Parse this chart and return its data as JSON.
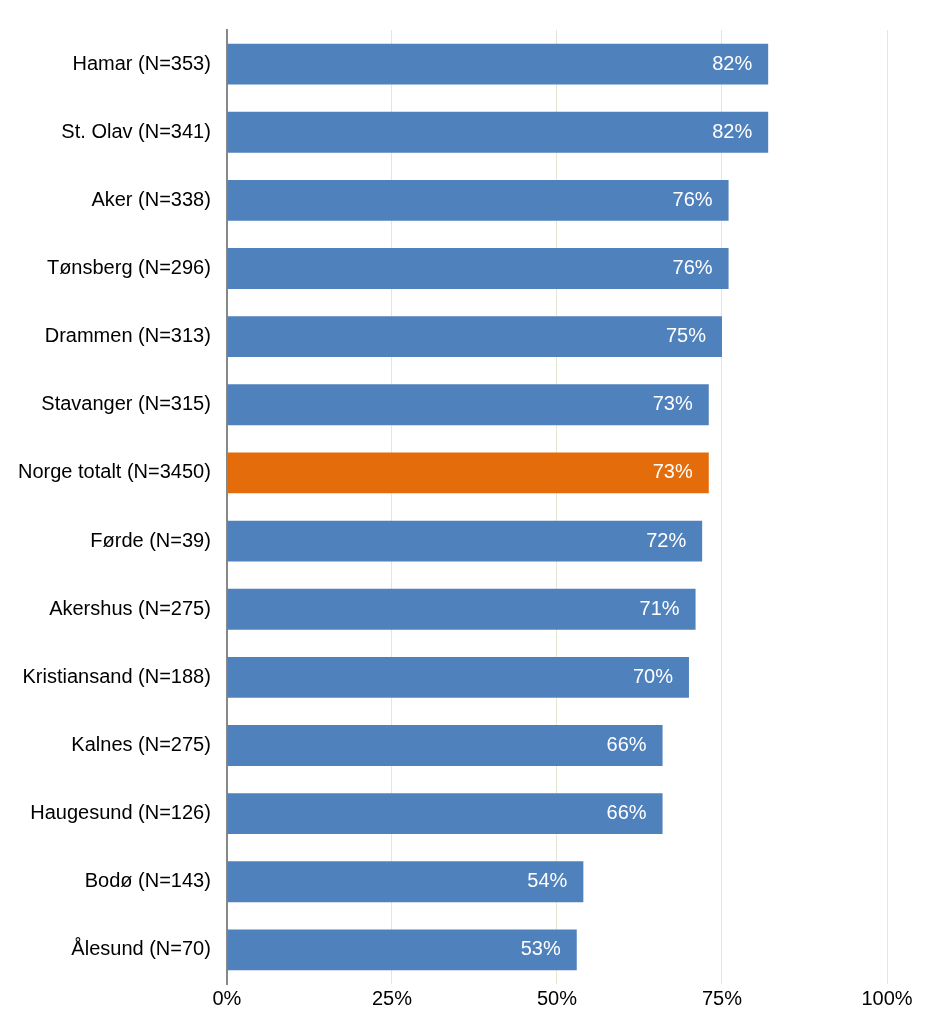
{
  "chart_data": {
    "type": "bar",
    "orientation": "horizontal",
    "categories": [
      "Hamar (N=353)",
      "St. Olav (N=341)",
      "Aker (N=338)",
      "Tønsberg (N=296)",
      "Drammen (N=313)",
      "Stavanger (N=315)",
      "Norge totalt (N=3450)",
      "Førde (N=39)",
      "Akershus (N=275)",
      "Kristiansand (N=188)",
      "Kalnes (N=275)",
      "Haugesund (N=126)",
      "Bodø (N=143)",
      "Ålesund (N=70)"
    ],
    "values": [
      82,
      82,
      76,
      76,
      75,
      73,
      73,
      72,
      71,
      70,
      66,
      66,
      54,
      53
    ],
    "colors": [
      "#4f81bd",
      "#4f81bd",
      "#4f81bd",
      "#4f81bd",
      "#4f81bd",
      "#4f81bd",
      "#e46c0a",
      "#4f81bd",
      "#4f81bd",
      "#4f81bd",
      "#4f81bd",
      "#4f81bd",
      "#4f81bd",
      "#4f81bd"
    ],
    "value_labels": [
      "82%",
      "82%",
      "76%",
      "76%",
      "75%",
      "73%",
      "73%",
      "72%",
      "71%",
      "70%",
      "66%",
      "66%",
      "54%",
      "53%"
    ],
    "xlim": [
      0,
      100
    ],
    "xticks": [
      {
        "value": 0,
        "label": "0%"
      },
      {
        "value": 25,
        "label": "25%"
      },
      {
        "value": 50,
        "label": "50%"
      },
      {
        "value": 75,
        "label": "75%"
      },
      {
        "value": 100,
        "label": "100%"
      }
    ],
    "grid": "x"
  }
}
